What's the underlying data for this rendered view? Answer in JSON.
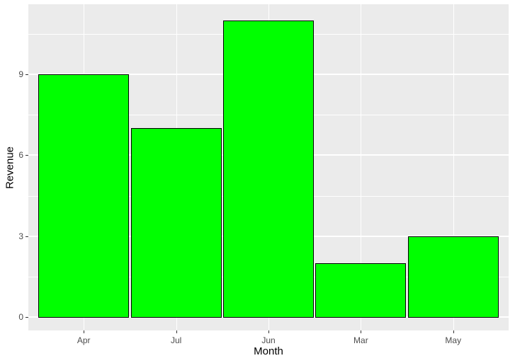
{
  "chart_data": {
    "type": "bar",
    "categories": [
      "Apr",
      "Jul",
      "Jun",
      "Mar",
      "May"
    ],
    "values": [
      9,
      7,
      11,
      2,
      3
    ],
    "title": "",
    "xlabel": "Month",
    "ylabel": "Revenue",
    "ylim": [
      -0.55,
      11.55
    ],
    "yticks": [
      0,
      3,
      6,
      9
    ],
    "yminor": [
      1.5,
      4.5,
      7.5,
      10.5
    ],
    "legend": "none",
    "grid": "on",
    "colors": {
      "bar_fill": "#00ff00",
      "bar_stroke": "#000000",
      "panel_background": "#ebebeb",
      "gridline": "#ffffff",
      "tick_mark": "#333333",
      "tick_label": "#4d4d4d",
      "axis_title": "#000000",
      "figure_background": "#ffffff"
    }
  }
}
